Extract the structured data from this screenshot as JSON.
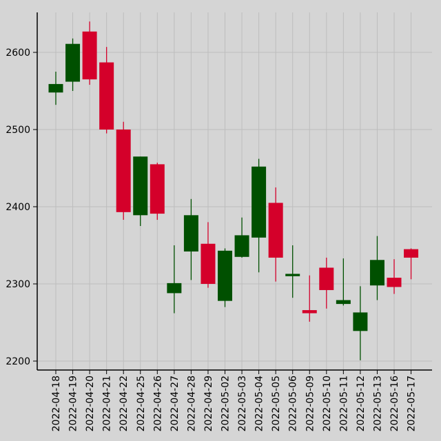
{
  "chart_data": {
    "type": "candlestick",
    "title": "",
    "xlabel": "",
    "ylabel": "",
    "ylim": [
      2190,
      2650
    ],
    "yticks": [
      2200,
      2300,
      2400,
      2500,
      2600
    ],
    "grid": true,
    "colors": {
      "up": "#005000",
      "down": "#d4002a",
      "grid": "#bdbdbd",
      "axis": "#000000"
    },
    "categories": [
      "2022-04-18",
      "2022-04-19",
      "2022-04-20",
      "2022-04-21",
      "2022-04-22",
      "2022-04-25",
      "2022-04-26",
      "2022-04-27",
      "2022-04-28",
      "2022-04-29",
      "2022-05-02",
      "2022-05-03",
      "2022-05-04",
      "2022-05-05",
      "2022-05-06",
      "2022-05-09",
      "2022-05-10",
      "2022-05-11",
      "2022-05-12",
      "2022-05-13",
      "2022-05-16",
      "2022-05-17"
    ],
    "open": [
      2548,
      2562,
      2627,
      2587,
      2500,
      2389,
      2455,
      2288,
      2342,
      2352,
      2278,
      2335,
      2360,
      2405,
      2310,
      2266,
      2321,
      2274,
      2239,
      2298,
      2308,
      2345
    ],
    "high": [
      2575,
      2618,
      2640,
      2607,
      2510,
      2465,
      2457,
      2350,
      2410,
      2380,
      2346,
      2386,
      2462,
      2425,
      2350,
      2311,
      2334,
      2333,
      2297,
      2362,
      2332,
      2346
    ],
    "low": [
      2532,
      2550,
      2558,
      2495,
      2383,
      2375,
      2383,
      2262,
      2305,
      2295,
      2270,
      2334,
      2315,
      2303,
      2282,
      2251,
      2268,
      2272,
      2201,
      2279,
      2287,
      2306
    ],
    "close": [
      2559,
      2611,
      2565,
      2500,
      2393,
      2465,
      2391,
      2301,
      2389,
      2300,
      2343,
      2363,
      2452,
      2334,
      2313,
      2262,
      2292,
      2279,
      2263,
      2331,
      2296,
      2334
    ]
  }
}
